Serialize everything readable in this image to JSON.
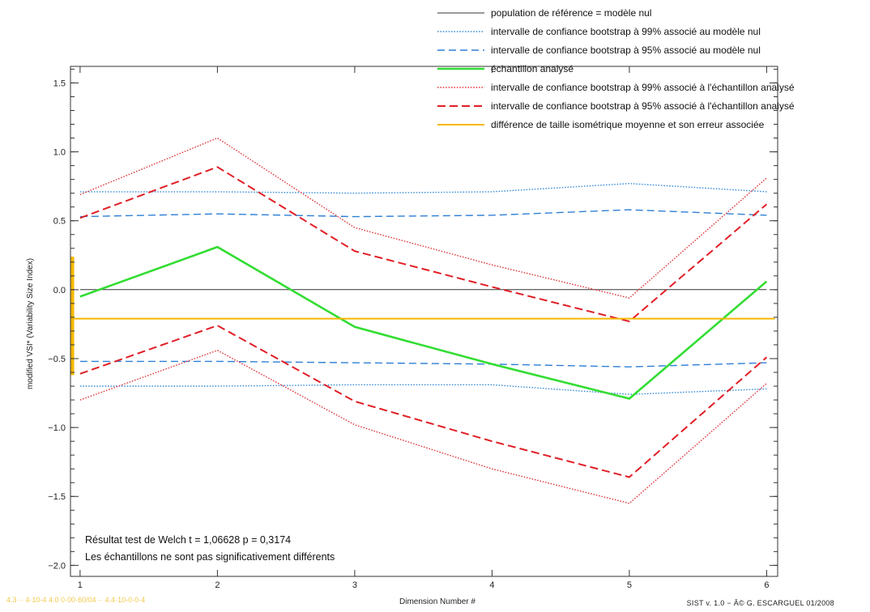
{
  "chart_data": {
    "type": "line",
    "title": "",
    "xlabel": "Dimension Number #",
    "ylabel": "modified VSI* (Variability Size Index)",
    "xlim": [
      0.93,
      6.08
    ],
    "ylim": [
      -2.08,
      1.62
    ],
    "x_ticks": [
      1,
      2,
      3,
      4,
      5,
      6
    ],
    "y_ticks": [
      1.5,
      1.0,
      0.5,
      0.0,
      -0.5,
      -1.0,
      -1.5,
      -2.0
    ],
    "y_tick_labels": [
      "1.5",
      "1.0",
      "0.5",
      "0.0",
      "−0.5",
      "−1.0",
      "−1.5",
      "−2.0"
    ],
    "x": [
      1,
      2,
      3,
      4,
      5,
      6
    ],
    "grid": false,
    "legend_position": "top-right",
    "series": [
      {
        "name": "population de référence = modèle nul",
        "color": "#333333",
        "style": "solid",
        "width": 1,
        "points": [
          [
            1,
            0.0
          ],
          [
            6,
            0.0
          ]
        ]
      },
      {
        "name": "intervalle de confiance bootstrap à 99% associé au modèle nul",
        "color": "#3c8fd9",
        "style": "dotted",
        "width": 1.4,
        "points": [
          [
            1,
            0.71
          ],
          [
            2,
            0.71
          ],
          [
            3,
            0.7
          ],
          [
            4,
            0.71
          ],
          [
            5,
            0.77
          ],
          [
            6,
            0.71
          ]
        ]
      },
      {
        "name": "",
        "color": "#3c8fd9",
        "style": "dotted",
        "width": 1.4,
        "points": [
          [
            1,
            -0.7
          ],
          [
            2,
            -0.7
          ],
          [
            3,
            -0.69
          ],
          [
            4,
            -0.69
          ],
          [
            5,
            -0.76
          ],
          [
            6,
            -0.72
          ]
        ]
      },
      {
        "name": "intervalle de confiance bootstrap à 95% associé au modèle nul",
        "color": "#2e7fd6",
        "style": "dashed",
        "width": 1.4,
        "points": [
          [
            1,
            0.53
          ],
          [
            2,
            0.55
          ],
          [
            3,
            0.53
          ],
          [
            4,
            0.54
          ],
          [
            5,
            0.58
          ],
          [
            6,
            0.54
          ]
        ]
      },
      {
        "name": "",
        "color": "#2e7fd6",
        "style": "dashed",
        "width": 1.4,
        "points": [
          [
            1,
            -0.52
          ],
          [
            2,
            -0.52
          ],
          [
            3,
            -0.53
          ],
          [
            4,
            -0.54
          ],
          [
            5,
            -0.56
          ],
          [
            6,
            -0.53
          ]
        ]
      },
      {
        "name": "échantillon analysé",
        "color": "#33dd33",
        "style": "solid",
        "width": 2.6,
        "points": [
          [
            1,
            -0.05
          ],
          [
            2,
            0.31
          ],
          [
            3,
            -0.27
          ],
          [
            4,
            -0.54
          ],
          [
            5,
            -0.79
          ],
          [
            6,
            0.06
          ]
        ]
      },
      {
        "name": "intervalle de confiance bootstrap à 99% associé à l'échantillon analysé",
        "color": "#e0393e",
        "style": "dotted",
        "width": 1.4,
        "points": [
          [
            1,
            0.69
          ],
          [
            2,
            1.1
          ],
          [
            3,
            0.45
          ],
          [
            4,
            0.18
          ],
          [
            5,
            -0.06
          ],
          [
            6,
            0.81
          ]
        ]
      },
      {
        "name": "",
        "color": "#e0393e",
        "style": "dotted",
        "width": 1.4,
        "points": [
          [
            1,
            -0.8
          ],
          [
            2,
            -0.44
          ],
          [
            3,
            -0.98
          ],
          [
            4,
            -1.3
          ],
          [
            5,
            -1.55
          ],
          [
            6,
            -0.68
          ]
        ]
      },
      {
        "name": "intervalle de confiance bootstrap à 95% associé à l'échantillon analysé",
        "color": "#e01f26",
        "style": "dashed",
        "width": 2,
        "points": [
          [
            1,
            0.52
          ],
          [
            2,
            0.89
          ],
          [
            3,
            0.28
          ],
          [
            4,
            0.02
          ],
          [
            5,
            -0.23
          ],
          [
            6,
            0.62
          ]
        ]
      },
      {
        "name": "",
        "color": "#e01f26",
        "style": "dashed",
        "width": 2,
        "points": [
          [
            1,
            -0.61
          ],
          [
            2,
            -0.26
          ],
          [
            3,
            -0.81
          ],
          [
            4,
            -1.1
          ],
          [
            5,
            -1.36
          ],
          [
            6,
            -0.49
          ]
        ]
      },
      {
        "name": "différence de taille isométrique moyenne et son erreur associée",
        "color": "#f5b800",
        "style": "solid",
        "width": 2,
        "points": [
          [
            0.94,
            -0.21
          ],
          [
            6.06,
            -0.21
          ]
        ]
      }
    ],
    "error_bar": {
      "x": 0.945,
      "y_low": -0.62,
      "y_high": 0.24,
      "color": "#f5b800"
    },
    "annotations": [
      "Résultat test de Welch t = 1,06628    p = 0,3174",
      "Les échantillons ne sont pas significativement différents"
    ],
    "footer": {
      "left_faint": "4.3 ·· 4·10-4 4.0 0·00·60/04 ·· 4.4·10-0·0·4",
      "credit": "SIST v. 1.0 − Â© G. ESCARGUEL 01/2008"
    }
  }
}
